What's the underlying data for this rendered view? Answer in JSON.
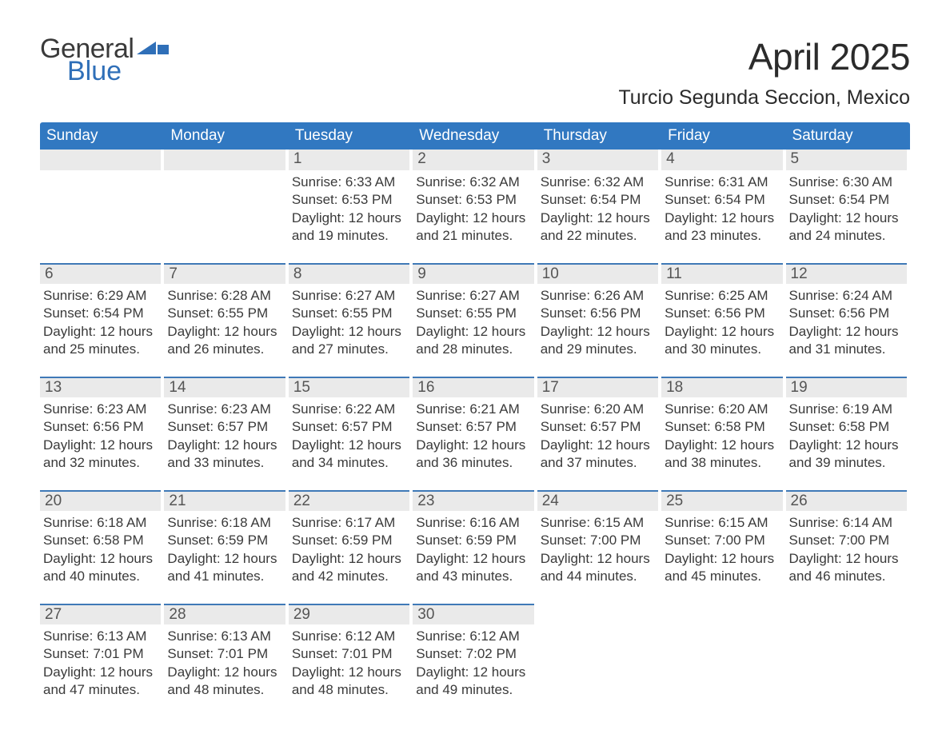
{
  "brand": {
    "word_top": "General",
    "word_bottom": "Blue",
    "flag_color": "#2f6fb8",
    "top_color": "#3a3a3a"
  },
  "title": "April 2025",
  "subtitle": "Turcio Segunda Seccion, Mexico",
  "colors": {
    "header_bg": "#3178c1",
    "header_text": "#ffffff",
    "dayhead_bg": "#eaeaea",
    "dayhead_border": "#3f79b7",
    "body_text": "#3a3a3a",
    "page_bg": "#ffffff"
  },
  "weekdays": [
    "Sunday",
    "Monday",
    "Tuesday",
    "Wednesday",
    "Thursday",
    "Friday",
    "Saturday"
  ],
  "weeks": [
    [
      {
        "daynum": "",
        "sunrise": "",
        "sunset": "",
        "daylight1": "",
        "daylight2": ""
      },
      {
        "daynum": "",
        "sunrise": "",
        "sunset": "",
        "daylight1": "",
        "daylight2": ""
      },
      {
        "daynum": "1",
        "sunrise": "Sunrise: 6:33 AM",
        "sunset": "Sunset: 6:53 PM",
        "daylight1": "Daylight: 12 hours",
        "daylight2": "and 19 minutes."
      },
      {
        "daynum": "2",
        "sunrise": "Sunrise: 6:32 AM",
        "sunset": "Sunset: 6:53 PM",
        "daylight1": "Daylight: 12 hours",
        "daylight2": "and 21 minutes."
      },
      {
        "daynum": "3",
        "sunrise": "Sunrise: 6:32 AM",
        "sunset": "Sunset: 6:54 PM",
        "daylight1": "Daylight: 12 hours",
        "daylight2": "and 22 minutes."
      },
      {
        "daynum": "4",
        "sunrise": "Sunrise: 6:31 AM",
        "sunset": "Sunset: 6:54 PM",
        "daylight1": "Daylight: 12 hours",
        "daylight2": "and 23 minutes."
      },
      {
        "daynum": "5",
        "sunrise": "Sunrise: 6:30 AM",
        "sunset": "Sunset: 6:54 PM",
        "daylight1": "Daylight: 12 hours",
        "daylight2": "and 24 minutes."
      }
    ],
    [
      {
        "daynum": "6",
        "sunrise": "Sunrise: 6:29 AM",
        "sunset": "Sunset: 6:54 PM",
        "daylight1": "Daylight: 12 hours",
        "daylight2": "and 25 minutes."
      },
      {
        "daynum": "7",
        "sunrise": "Sunrise: 6:28 AM",
        "sunset": "Sunset: 6:55 PM",
        "daylight1": "Daylight: 12 hours",
        "daylight2": "and 26 minutes."
      },
      {
        "daynum": "8",
        "sunrise": "Sunrise: 6:27 AM",
        "sunset": "Sunset: 6:55 PM",
        "daylight1": "Daylight: 12 hours",
        "daylight2": "and 27 minutes."
      },
      {
        "daynum": "9",
        "sunrise": "Sunrise: 6:27 AM",
        "sunset": "Sunset: 6:55 PM",
        "daylight1": "Daylight: 12 hours",
        "daylight2": "and 28 minutes."
      },
      {
        "daynum": "10",
        "sunrise": "Sunrise: 6:26 AM",
        "sunset": "Sunset: 6:56 PM",
        "daylight1": "Daylight: 12 hours",
        "daylight2": "and 29 minutes."
      },
      {
        "daynum": "11",
        "sunrise": "Sunrise: 6:25 AM",
        "sunset": "Sunset: 6:56 PM",
        "daylight1": "Daylight: 12 hours",
        "daylight2": "and 30 minutes."
      },
      {
        "daynum": "12",
        "sunrise": "Sunrise: 6:24 AM",
        "sunset": "Sunset: 6:56 PM",
        "daylight1": "Daylight: 12 hours",
        "daylight2": "and 31 minutes."
      }
    ],
    [
      {
        "daynum": "13",
        "sunrise": "Sunrise: 6:23 AM",
        "sunset": "Sunset: 6:56 PM",
        "daylight1": "Daylight: 12 hours",
        "daylight2": "and 32 minutes."
      },
      {
        "daynum": "14",
        "sunrise": "Sunrise: 6:23 AM",
        "sunset": "Sunset: 6:57 PM",
        "daylight1": "Daylight: 12 hours",
        "daylight2": "and 33 minutes."
      },
      {
        "daynum": "15",
        "sunrise": "Sunrise: 6:22 AM",
        "sunset": "Sunset: 6:57 PM",
        "daylight1": "Daylight: 12 hours",
        "daylight2": "and 34 minutes."
      },
      {
        "daynum": "16",
        "sunrise": "Sunrise: 6:21 AM",
        "sunset": "Sunset: 6:57 PM",
        "daylight1": "Daylight: 12 hours",
        "daylight2": "and 36 minutes."
      },
      {
        "daynum": "17",
        "sunrise": "Sunrise: 6:20 AM",
        "sunset": "Sunset: 6:57 PM",
        "daylight1": "Daylight: 12 hours",
        "daylight2": "and 37 minutes."
      },
      {
        "daynum": "18",
        "sunrise": "Sunrise: 6:20 AM",
        "sunset": "Sunset: 6:58 PM",
        "daylight1": "Daylight: 12 hours",
        "daylight2": "and 38 minutes."
      },
      {
        "daynum": "19",
        "sunrise": "Sunrise: 6:19 AM",
        "sunset": "Sunset: 6:58 PM",
        "daylight1": "Daylight: 12 hours",
        "daylight2": "and 39 minutes."
      }
    ],
    [
      {
        "daynum": "20",
        "sunrise": "Sunrise: 6:18 AM",
        "sunset": "Sunset: 6:58 PM",
        "daylight1": "Daylight: 12 hours",
        "daylight2": "and 40 minutes."
      },
      {
        "daynum": "21",
        "sunrise": "Sunrise: 6:18 AM",
        "sunset": "Sunset: 6:59 PM",
        "daylight1": "Daylight: 12 hours",
        "daylight2": "and 41 minutes."
      },
      {
        "daynum": "22",
        "sunrise": "Sunrise: 6:17 AM",
        "sunset": "Sunset: 6:59 PM",
        "daylight1": "Daylight: 12 hours",
        "daylight2": "and 42 minutes."
      },
      {
        "daynum": "23",
        "sunrise": "Sunrise: 6:16 AM",
        "sunset": "Sunset: 6:59 PM",
        "daylight1": "Daylight: 12 hours",
        "daylight2": "and 43 minutes."
      },
      {
        "daynum": "24",
        "sunrise": "Sunrise: 6:15 AM",
        "sunset": "Sunset: 7:00 PM",
        "daylight1": "Daylight: 12 hours",
        "daylight2": "and 44 minutes."
      },
      {
        "daynum": "25",
        "sunrise": "Sunrise: 6:15 AM",
        "sunset": "Sunset: 7:00 PM",
        "daylight1": "Daylight: 12 hours",
        "daylight2": "and 45 minutes."
      },
      {
        "daynum": "26",
        "sunrise": "Sunrise: 6:14 AM",
        "sunset": "Sunset: 7:00 PM",
        "daylight1": "Daylight: 12 hours",
        "daylight2": "and 46 minutes."
      }
    ],
    [
      {
        "daynum": "27",
        "sunrise": "Sunrise: 6:13 AM",
        "sunset": "Sunset: 7:01 PM",
        "daylight1": "Daylight: 12 hours",
        "daylight2": "and 47 minutes."
      },
      {
        "daynum": "28",
        "sunrise": "Sunrise: 6:13 AM",
        "sunset": "Sunset: 7:01 PM",
        "daylight1": "Daylight: 12 hours",
        "daylight2": "and 48 minutes."
      },
      {
        "daynum": "29",
        "sunrise": "Sunrise: 6:12 AM",
        "sunset": "Sunset: 7:01 PM",
        "daylight1": "Daylight: 12 hours",
        "daylight2": "and 48 minutes."
      },
      {
        "daynum": "30",
        "sunrise": "Sunrise: 6:12 AM",
        "sunset": "Sunset: 7:02 PM",
        "daylight1": "Daylight: 12 hours",
        "daylight2": "and 49 minutes."
      },
      {
        "daynum": "",
        "sunrise": "",
        "sunset": "",
        "daylight1": "",
        "daylight2": ""
      },
      {
        "daynum": "",
        "sunrise": "",
        "sunset": "",
        "daylight1": "",
        "daylight2": ""
      },
      {
        "daynum": "",
        "sunrise": "",
        "sunset": "",
        "daylight1": "",
        "daylight2": ""
      }
    ]
  ]
}
